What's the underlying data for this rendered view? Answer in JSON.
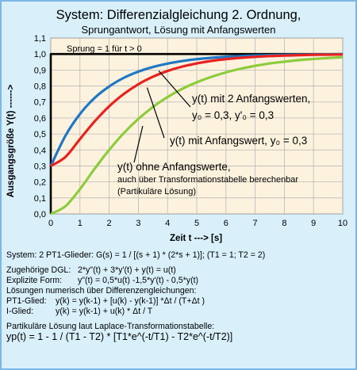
{
  "chart_data": {
    "type": "line",
    "title": "System:  Differenzialgleichung 2. Ordnung,",
    "subtitle": "Sprungantwort,  Lösung mit Anfangswerten",
    "xlabel": "Zeit t ---> [s]",
    "ylabel": "Ausgangsgröße Y(t)  ------>",
    "xlim": [
      0,
      10
    ],
    "ylim": [
      0,
      1.1
    ],
    "x_ticks": [
      "0",
      "1",
      "2",
      "3",
      "4",
      "5",
      "6",
      "7",
      "8",
      "9",
      "10"
    ],
    "y_ticks": [
      "0,0",
      "0,1",
      "0,2",
      "0,3",
      "0,4",
      "0,5",
      "0,6",
      "0,7",
      "0,8",
      "0,9",
      "1,0",
      "1,1"
    ],
    "grid": true,
    "plot_background": "#fdf2de",
    "x": [
      0,
      0.5,
      1,
      1.5,
      2,
      2.5,
      3,
      3.5,
      4,
      4.5,
      5,
      5.5,
      6,
      6.5,
      7,
      7.5,
      8,
      8.5,
      9,
      9.5,
      10
    ],
    "series": [
      {
        "name": "Sprung = 1 für t > 0",
        "color": "#000000",
        "values": [
          1,
          1,
          1,
          1,
          1,
          1,
          1,
          1,
          1,
          1,
          1,
          1,
          1,
          1,
          1,
          1,
          1,
          1,
          1,
          1,
          1
        ]
      },
      {
        "name": "y(t) mit 2 Anfangswerten, y₀ = 0,3, y'₀ = 0,3",
        "color": "#1f77c4",
        "values": [
          0.3,
          0.488,
          0.625,
          0.725,
          0.797,
          0.851,
          0.89,
          0.919,
          0.94,
          0.956,
          0.968,
          0.976,
          0.983,
          0.987,
          0.991,
          0.993,
          0.995,
          0.996,
          0.997,
          0.998,
          0.999
        ]
      },
      {
        "name": "y(t) mit Anfangswert, y₀ = 0,3",
        "color": "#e8221f",
        "values": [
          0.3,
          0.356,
          0.468,
          0.578,
          0.673,
          0.75,
          0.811,
          0.858,
          0.894,
          0.921,
          0.941,
          0.957,
          0.968,
          0.976,
          0.982,
          0.987,
          0.99,
          0.993,
          0.995,
          0.996,
          0.997
        ]
      },
      {
        "name": "y(t) ohne  Anfangswerte,",
        "color": "#8dcc3c",
        "values": [
          0,
          0.048,
          0.155,
          0.282,
          0.4,
          0.505,
          0.594,
          0.669,
          0.731,
          0.782,
          0.823,
          0.857,
          0.885,
          0.908,
          0.926,
          0.941,
          0.952,
          0.962,
          0.969,
          0.975,
          0.98
        ]
      }
    ],
    "annotations": [
      "Sprung = 1 für t > 0",
      "y(t) mit 2 Anfangswerten,",
      "y₀ = 0,3, y'₀ = 0,3",
      "y(t) mit Anfangswert, y₀ = 0,3",
      "y(t) ohne  Anfangswerte,",
      "auch über Transformationstabelle berechenbar",
      "(Partikuläre Lösung)"
    ]
  },
  "equations": {
    "system": "System: 2 PT1-Glieder: G(s) = 1 / [(s + 1) * (2*s + 1)];  (T1 = 1;  T2 = 2)",
    "dgl_label": "Zugehörige DGL:",
    "dgl": "2*y\"(t) + 3*y'(t)  + y(t) = u(t)",
    "explicit_label": "Explizite Form:",
    "explicit": "y\"(t) = 0,5*u(t) -1,5*y'(t) - 0,5*y(t)",
    "numeric_title": "Lösungen numerisch über Differenzengleichungen:",
    "pt1_label": "PT1-Glied:",
    "pt1": "y(k) = y(k-1) + [u(k) - y(k-1)] *Δt / (T+Δt )",
    "i_label": "I-Glied:",
    "i": "y(k) = y(k-1) + u(k) * Δt / T",
    "laplace_title": "Partikuläre Lösung laut Laplace-Transformationstabelle:",
    "laplace": "yp(t) = 1 - 1 / (T1 - T2) * [T1*e^(-t/T1) - T2*e^(-t/T2)]"
  }
}
